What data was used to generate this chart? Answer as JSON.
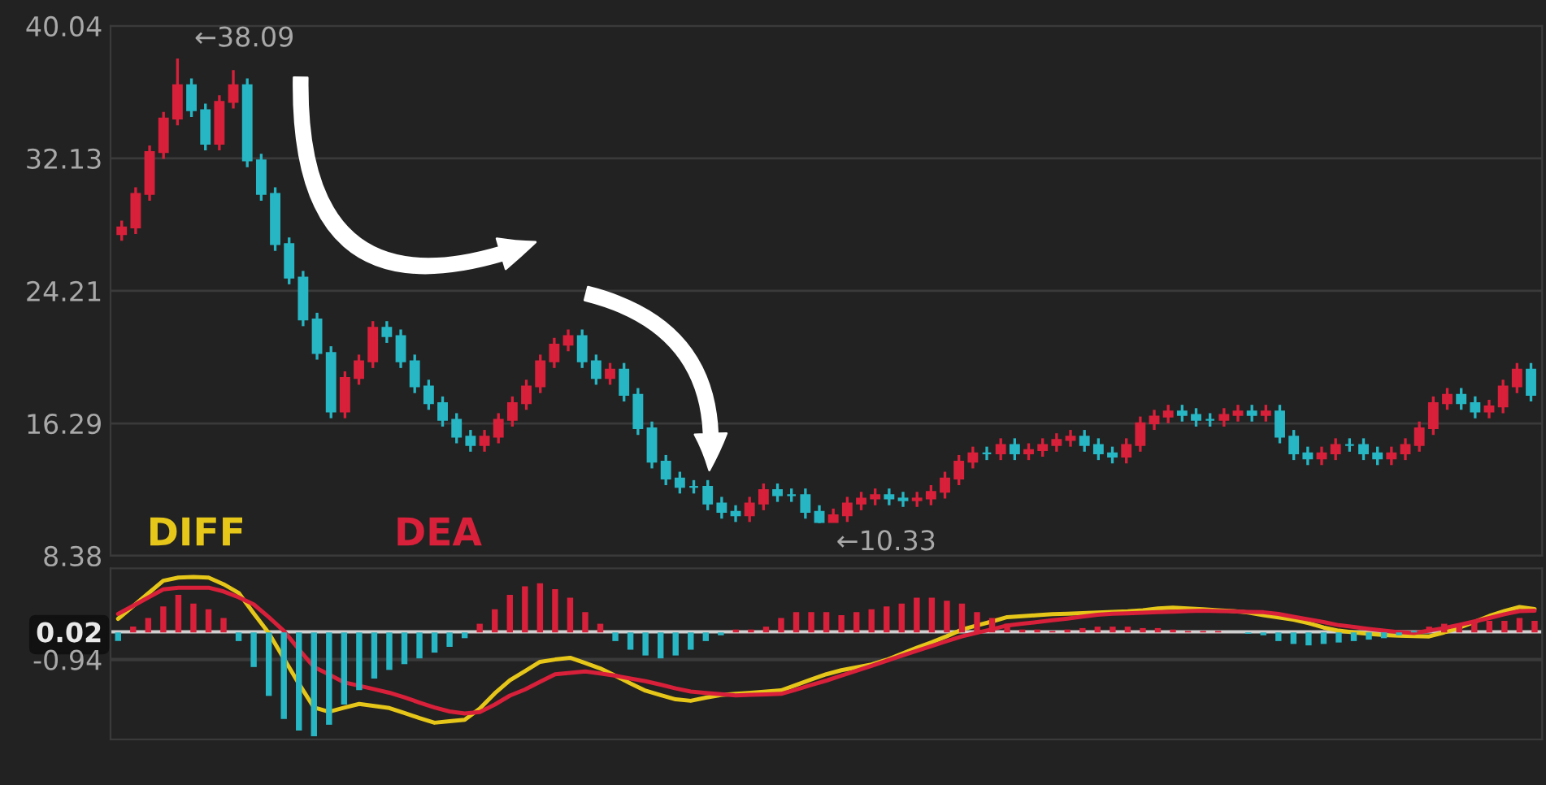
{
  "chart_data": [
    {
      "type": "candlestick",
      "categories": [
        null,
        null,
        null,
        null,
        null,
        null,
        null,
        null,
        null,
        null,
        null,
        null,
        null,
        null,
        null,
        null,
        null,
        null,
        null,
        null,
        null,
        null,
        null,
        null,
        null,
        null,
        null,
        null,
        null,
        null,
        null,
        null,
        null,
        null,
        null,
        null,
        null,
        null,
        null,
        null,
        null,
        null,
        null,
        null,
        null,
        null,
        null,
        null,
        null,
        null,
        null,
        null,
        null,
        null,
        null,
        null,
        null,
        null,
        null,
        null,
        null,
        null,
        null,
        null,
        null,
        null,
        null,
        null,
        null,
        null,
        null,
        null,
        null,
        null,
        null,
        null,
        null,
        null,
        null,
        null,
        null,
        null,
        null,
        null,
        null,
        null,
        null,
        null,
        null,
        null,
        null,
        null,
        null,
        null,
        null,
        null,
        null,
        null,
        null,
        null,
        null,
        null
      ],
      "ohlc": [
        [
          27.6,
          28.4,
          27.2,
          28
        ],
        [
          28,
          30.4,
          27.6,
          30
        ],
        [
          30,
          32.9,
          29.6,
          32.5
        ],
        [
          32.5,
          34.9,
          32.1,
          34.5
        ],
        [
          34.5,
          38.09,
          34.1,
          36.5
        ],
        [
          36.5,
          36.9,
          34.6,
          35
        ],
        [
          35,
          35.4,
          32.6,
          33
        ],
        [
          33,
          35.9,
          32.6,
          35.5
        ],
        [
          35.5,
          37.4,
          35.1,
          36.5
        ],
        [
          36.5,
          36.9,
          31.6,
          32
        ],
        [
          32,
          32.4,
          29.6,
          30
        ],
        [
          30,
          30.4,
          26.6,
          27
        ],
        [
          27,
          27.4,
          24.6,
          25
        ],
        [
          25,
          25.4,
          22.1,
          22.5
        ],
        [
          22.5,
          22.9,
          20.1,
          20.5
        ],
        [
          20.5,
          20.9,
          16.6,
          17
        ],
        [
          17,
          19.4,
          16.6,
          19
        ],
        [
          19,
          20.4,
          18.6,
          20
        ],
        [
          20,
          22.4,
          19.6,
          22
        ],
        [
          22,
          22.4,
          21.1,
          21.5
        ],
        [
          21.5,
          21.9,
          19.6,
          20
        ],
        [
          20,
          20.4,
          18.1,
          18.5
        ],
        [
          18.5,
          18.9,
          17.1,
          17.5
        ],
        [
          17.5,
          17.9,
          16.1,
          16.5
        ],
        [
          16.5,
          16.9,
          15.1,
          15.5
        ],
        [
          15.5,
          15.9,
          14.6,
          15
        ],
        [
          15,
          15.9,
          14.6,
          15.5
        ],
        [
          15.5,
          16.9,
          15.1,
          16.5
        ],
        [
          16.5,
          17.9,
          16.1,
          17.5
        ],
        [
          17.5,
          18.9,
          17.1,
          18.5
        ],
        [
          18.5,
          20.4,
          18.1,
          20
        ],
        [
          20,
          21.4,
          19.6,
          21
        ],
        [
          21,
          21.9,
          20.6,
          21.5
        ],
        [
          21.5,
          21.9,
          19.6,
          20
        ],
        [
          20,
          20.4,
          18.6,
          19
        ],
        [
          19,
          19.9,
          18.6,
          19.5
        ],
        [
          19.5,
          19.9,
          17.6,
          18
        ],
        [
          18,
          18.4,
          15.6,
          16
        ],
        [
          16,
          16.4,
          13.6,
          14
        ],
        [
          14,
          14.4,
          12.6,
          13
        ],
        [
          13,
          13.4,
          12.1,
          12.5
        ],
        [
          12.5,
          12.9,
          12.1,
          12.5
        ],
        [
          12.5,
          12.9,
          11.1,
          11.5
        ],
        [
          11.5,
          11.9,
          10.6,
          11
        ],
        [
          11,
          11.4,
          10.4,
          10.8
        ],
        [
          10.8,
          11.9,
          10.4,
          11.5
        ],
        [
          11.5,
          12.7,
          11.1,
          12.3
        ],
        [
          12.3,
          12.7,
          11.6,
          12
        ],
        [
          12,
          12.4,
          11.6,
          12
        ],
        [
          12,
          12.4,
          10.6,
          11
        ],
        [
          11,
          11.4,
          10.33,
          10.4
        ],
        [
          10.4,
          11.2,
          10.4,
          10.8
        ],
        [
          10.8,
          11.9,
          10.4,
          11.5
        ],
        [
          11.5,
          12.2,
          11.1,
          11.8
        ],
        [
          11.8,
          12.4,
          11.4,
          12
        ],
        [
          12,
          12.4,
          11.4,
          11.8
        ],
        [
          11.8,
          12.2,
          11.3,
          11.7
        ],
        [
          11.7,
          12.2,
          11.3,
          11.8
        ],
        [
          11.8,
          12.6,
          11.4,
          12.2
        ],
        [
          12.2,
          13.4,
          11.8,
          13
        ],
        [
          13,
          14.4,
          12.6,
          14
        ],
        [
          14,
          14.9,
          13.6,
          14.5
        ],
        [
          14.5,
          14.9,
          14.1,
          14.5
        ],
        [
          14.5,
          15.4,
          14.1,
          15
        ],
        [
          15,
          15.4,
          14.1,
          14.5
        ],
        [
          14.5,
          15.1,
          14.1,
          14.7
        ],
        [
          14.7,
          15.4,
          14.3,
          15
        ],
        [
          15,
          15.7,
          14.6,
          15.3
        ],
        [
          15.3,
          15.9,
          14.9,
          15.5
        ],
        [
          15.5,
          15.9,
          14.6,
          15
        ],
        [
          15,
          15.4,
          14.1,
          14.5
        ],
        [
          14.5,
          14.9,
          13.9,
          14.3
        ],
        [
          14.3,
          15.4,
          13.9,
          15
        ],
        [
          15,
          16.7,
          14.6,
          16.3
        ],
        [
          16.3,
          17.1,
          15.9,
          16.7
        ],
        [
          16.7,
          17.4,
          16.3,
          17
        ],
        [
          17,
          17.4,
          16.4,
          16.8
        ],
        [
          16.8,
          17.2,
          16.1,
          16.5
        ],
        [
          16.5,
          16.9,
          16.1,
          16.5
        ],
        [
          16.5,
          17.2,
          16.1,
          16.8
        ],
        [
          16.8,
          17.4,
          16.4,
          17
        ],
        [
          17,
          17.4,
          16.4,
          16.8
        ],
        [
          16.8,
          17.4,
          16.4,
          17
        ],
        [
          17,
          17.4,
          15.1,
          15.5
        ],
        [
          15.5,
          15.9,
          14.1,
          14.5
        ],
        [
          14.5,
          14.9,
          13.8,
          14.2
        ],
        [
          14.2,
          14.9,
          13.8,
          14.5
        ],
        [
          14.5,
          15.4,
          14.1,
          15
        ],
        [
          15,
          15.4,
          14.6,
          15
        ],
        [
          15,
          15.4,
          14.1,
          14.5
        ],
        [
          14.5,
          14.9,
          13.8,
          14.2
        ],
        [
          14.2,
          14.9,
          13.8,
          14.5
        ],
        [
          14.5,
          15.4,
          14.1,
          15
        ],
        [
          15,
          16.4,
          14.6,
          16
        ],
        [
          16,
          17.9,
          15.6,
          17.5
        ],
        [
          17.5,
          18.4,
          17.1,
          18
        ],
        [
          18,
          18.4,
          17.1,
          17.5
        ],
        [
          17.5,
          17.9,
          16.6,
          17
        ],
        [
          17,
          17.7,
          16.6,
          17.3
        ],
        [
          17.3,
          18.9,
          16.9,
          18.5
        ],
        [
          18.5,
          19.9,
          18.1,
          19.5
        ],
        [
          19.5,
          19.9,
          17.6,
          18
        ]
      ],
      "ylim": [
        8.38,
        40.04
      ],
      "yticks": [
        8.38,
        16.29,
        24.21,
        32.13,
        40.04
      ],
      "grid": "y",
      "tick_labels": "y",
      "annotations": [
        "←38.09",
        "←10.33"
      ]
    },
    {
      "type": "bar",
      "categories": [
        null,
        null,
        null,
        null,
        null,
        null,
        null,
        null,
        null,
        null,
        null,
        null,
        null,
        null,
        null,
        null,
        null,
        null,
        null,
        null,
        null,
        null,
        null,
        null,
        null,
        null,
        null,
        null,
        null,
        null,
        null,
        null,
        null,
        null,
        null,
        null,
        null,
        null,
        null,
        null,
        null,
        null,
        null,
        null,
        null,
        null,
        null,
        null,
        null,
        null,
        null,
        null,
        null,
        null,
        null,
        null,
        null,
        null,
        null,
        null,
        null,
        null,
        null,
        null,
        null,
        null,
        null,
        null,
        null,
        null,
        null,
        null,
        null,
        null,
        null,
        null,
        null,
        null,
        null,
        null,
        null,
        null,
        null,
        null,
        null,
        null,
        null,
        null,
        null,
        null,
        null,
        null,
        null,
        null,
        null
      ],
      "series": [
        {
          "type": "bar",
          "colors": [
            "#27b6c4",
            "#d8203a",
            "#d8203a",
            "#d8203a",
            "#d8203a",
            "#d8203a",
            "#d8203a",
            "#d8203a",
            "#27b6c4",
            "#27b6c4",
            "#27b6c4",
            "#27b6c4",
            "#27b6c4",
            "#27b6c4",
            "#27b6c4",
            "#27b6c4",
            "#27b6c4",
            "#27b6c4",
            "#27b6c4",
            "#27b6c4",
            "#27b6c4",
            "#27b6c4",
            "#27b6c4",
            "#27b6c4",
            "#d8203a",
            "#d8203a",
            "#d8203a",
            "#d8203a",
            "#d8203a",
            "#d8203a",
            "#d8203a",
            "#d8203a",
            "#d8203a",
            "#27b6c4",
            "#27b6c4",
            "#27b6c4",
            "#27b6c4",
            "#27b6c4",
            "#27b6c4",
            "#27b6c4",
            "#27b6c4",
            "#d8203a",
            "#d8203a",
            "#d8203a",
            "#d8203a",
            "#d8203a",
            "#d8203a",
            "#d8203a",
            "#d8203a",
            "#d8203a",
            "#d8203a",
            "#d8203a",
            "#d8203a",
            "#d8203a",
            "#d8203a",
            "#d8203a",
            "#d8203a",
            "#d8203a",
            "#d8203a",
            "#d8203a",
            "#d8203a",
            "#d8203a",
            "#d8203a",
            "#d8203a",
            "#d8203a",
            "#d8203a",
            "#d8203a",
            "#d8203a",
            "#d8203a",
            "#d8203a",
            "#d8203a",
            "#d8203a",
            "#d8203a",
            "#d8203a",
            "#d8203a",
            "#27b6c4",
            "#27b6c4",
            "#27b6c4",
            "#27b6c4",
            "#27b6c4",
            "#27b6c4",
            "#27b6c4",
            "#27b6c4",
            "#27b6c4",
            "#27b6c4",
            "#27b6c4",
            "#27b6c4",
            "#d8203a",
            "#d8203a",
            "#d8203a",
            "#d8203a",
            "#d8203a",
            "#d8203a",
            "#d8203a",
            "#d8203a"
          ],
          "values": [
            -0.3,
            0.2,
            0.5,
            0.9,
            1.3,
            1.0,
            0.8,
            0.5,
            -0.3,
            -1.2,
            -2.2,
            -3.0,
            -3.4,
            -3.6,
            -3.2,
            -2.5,
            -2.0,
            -1.6,
            -1.3,
            -1.1,
            -0.9,
            -0.7,
            -0.5,
            -0.2,
            0.3,
            0.8,
            1.3,
            1.6,
            1.7,
            1.5,
            1.2,
            0.7,
            0.3,
            -0.3,
            -0.6,
            -0.8,
            -0.9,
            -0.8,
            -0.6,
            -0.3,
            -0.1,
            0.1,
            0.1,
            0.2,
            0.5,
            0.7,
            0.7,
            0.7,
            0.6,
            0.7,
            0.8,
            0.9,
            1.0,
            1.2,
            1.2,
            1.1,
            1.0,
            0.7,
            0.5,
            0.3,
            0.1,
            0.1,
            0.05,
            0.1,
            0.15,
            0.2,
            0.2,
            0.2,
            0.15,
            0.15,
            0.1,
            0.05,
            0.05,
            0.05,
            0.0,
            -0.05,
            -0.1,
            -0.3,
            -0.4,
            -0.45,
            -0.4,
            -0.35,
            -0.3,
            -0.25,
            -0.2,
            -0.1,
            0.05,
            0.2,
            0.3,
            0.3,
            0.35,
            0.4,
            0.4,
            0.5,
            0.4
          ]
        },
        {
          "type": "line",
          "name": "DIFF",
          "color": "#e6c619",
          "values": [
            0.47,
            0.91,
            1.35,
            1.79,
            1.9,
            1.92,
            1.9,
            1.67,
            1.37,
            0.66,
            -0.02,
            -0.9,
            -1.78,
            -2.6,
            -2.75,
            -2.61,
            -2.48,
            -2.55,
            -2.62,
            -2.79,
            -2.97,
            -3.13,
            -3.08,
            -3.03,
            -2.64,
            -2.11,
            -1.66,
            -1.34,
            -1.02,
            -0.94,
            -0.88,
            -1.06,
            -1.25,
            -1.5,
            -1.77,
            -2.02,
            -2.17,
            -2.32,
            -2.37,
            -2.26,
            -2.17,
            -2.13,
            -2.09,
            -2.05,
            -2.01,
            -1.82,
            -1.63,
            -1.45,
            -1.31,
            -1.21,
            -1.11,
            -0.95,
            -0.74,
            -0.53,
            -0.34,
            -0.13,
            0.1,
            0.24,
            0.38,
            0.53,
            0.56,
            0.6,
            0.63,
            0.65,
            0.67,
            0.69,
            0.71,
            0.73,
            0.77,
            0.83,
            0.86,
            0.83,
            0.8,
            0.77,
            0.74,
            0.69,
            0.6,
            0.52,
            0.44,
            0.32,
            0.17,
            0.06,
            0.0,
            -0.05,
            -0.09,
            -0.11,
            -0.13,
            -0.14,
            0.0,
            0.16,
            0.36,
            0.57,
            0.74,
            0.88,
            0.81
          ]
        },
        {
          "type": "line",
          "name": "DEA",
          "color": "#d8203a",
          "values": [
            0.64,
            0.92,
            1.21,
            1.49,
            1.55,
            1.55,
            1.55,
            1.42,
            1.22,
            0.97,
            0.53,
            0.05,
            -0.59,
            -1.2,
            -1.46,
            -1.73,
            -1.85,
            -1.97,
            -2.09,
            -2.25,
            -2.43,
            -2.6,
            -2.74,
            -2.81,
            -2.76,
            -2.5,
            -2.19,
            -1.98,
            -1.71,
            -1.45,
            -1.4,
            -1.35,
            -1.42,
            -1.5,
            -1.6,
            -1.69,
            -1.81,
            -1.94,
            -2.05,
            -2.1,
            -2.14,
            -2.18,
            -2.16,
            -2.15,
            -2.13,
            -1.98,
            -1.82,
            -1.67,
            -1.5,
            -1.33,
            -1.16,
            -0.98,
            -0.81,
            -0.64,
            -0.47,
            -0.3,
            -0.14,
            -0.01,
            0.11,
            0.24,
            0.3,
            0.36,
            0.42,
            0.48,
            0.55,
            0.61,
            0.65,
            0.66,
            0.68,
            0.7,
            0.72,
            0.74,
            0.75,
            0.74,
            0.73,
            0.71,
            0.7,
            0.64,
            0.54,
            0.45,
            0.36,
            0.25,
            0.19,
            0.12,
            0.06,
            0.01,
            -0.02,
            0.06,
            0.15,
            0.26,
            0.38,
            0.5,
            0.63,
            0.74,
            0.75
          ]
        }
      ],
      "ylim": [
        -3.71,
        2.22
      ],
      "yticks": [
        0.02,
        -0.94
      ],
      "tick_labels": "y",
      "legend": "top left",
      "ref_lines": [
        {
          "axis": "y",
          "value": 0.02,
          "color": "#cfcfcf"
        },
        {
          "axis": "y",
          "value": -0.94,
          "color": "#3a3a3a"
        }
      ]
    }
  ]
}
